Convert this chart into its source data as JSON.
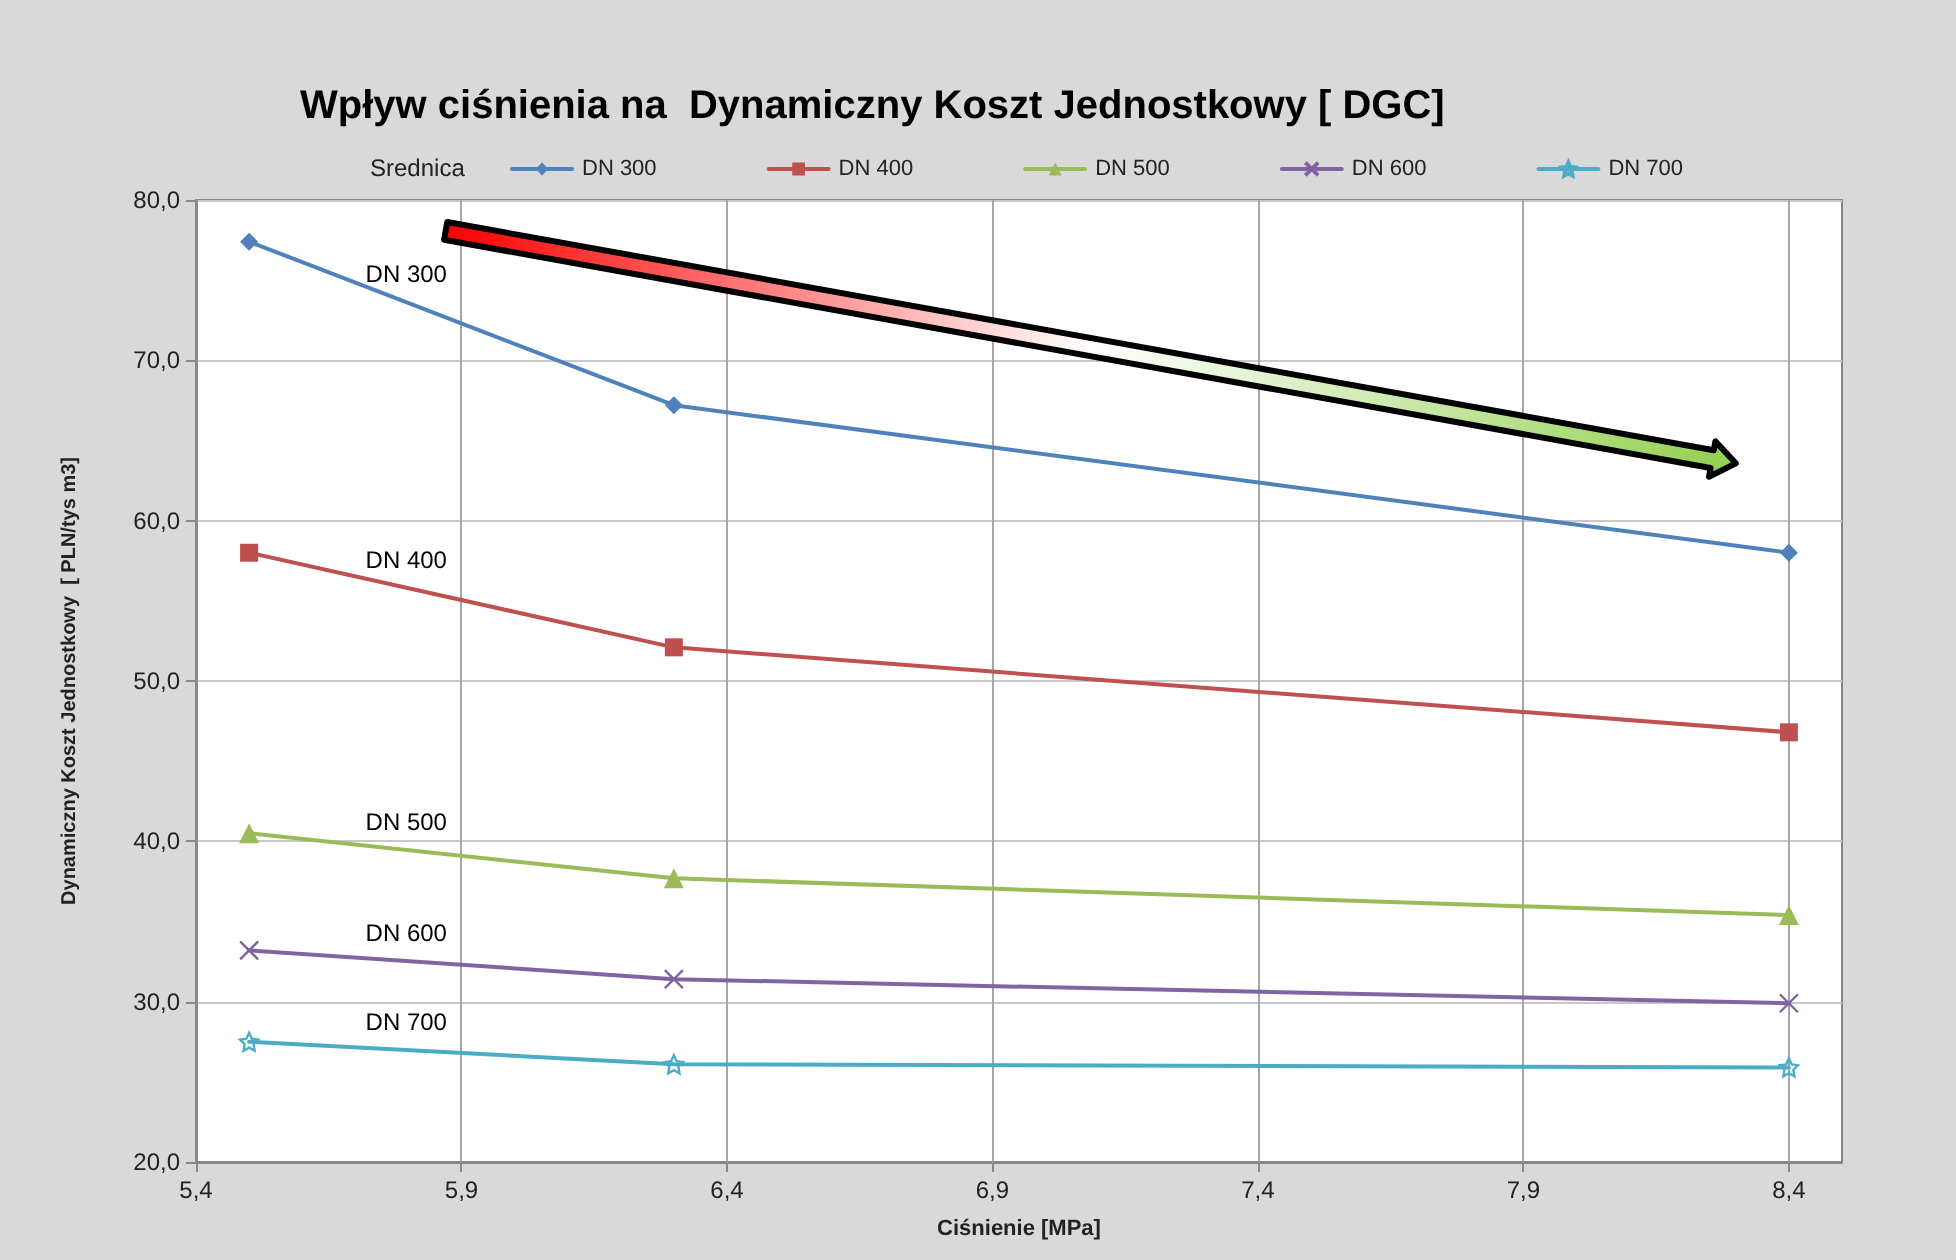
{
  "chart_data": {
    "type": "line",
    "title": "Wpływ ciśnienia na  Dynamiczny Koszt Jednostkowy [ DGC]",
    "xlabel": "Ciśnienie [MPa]",
    "ylabel": "Dynamiczny Koszt Jednostkowy  [ PLN/tys m3]",
    "legend_title": "Srednica",
    "legend": "top",
    "grid": true,
    "x": [
      5.5,
      6.3,
      8.4
    ],
    "xlim": [
      5.4,
      8.5
    ],
    "xticks": [
      {
        "value": 5.4,
        "label": "5,4"
      },
      {
        "value": 5.9,
        "label": "5,9"
      },
      {
        "value": 6.4,
        "label": "6,4"
      },
      {
        "value": 6.9,
        "label": "6,9"
      },
      {
        "value": 7.4,
        "label": "7,4"
      },
      {
        "value": 7.9,
        "label": "7,9"
      },
      {
        "value": 8.4,
        "label": "8,4"
      }
    ],
    "ylim": [
      20,
      80
    ],
    "yticks": [
      {
        "value": 20,
        "label": "20,0"
      },
      {
        "value": 30,
        "label": "30,0"
      },
      {
        "value": 40,
        "label": "40,0"
      },
      {
        "value": 50,
        "label": "50,0"
      },
      {
        "value": 60,
        "label": "60,0"
      },
      {
        "value": 70,
        "label": "70,0"
      },
      {
        "value": 80,
        "label": "80,0"
      }
    ],
    "series": [
      {
        "name": "DN 300",
        "color": "#4f81bd",
        "marker": "diamond",
        "values": [
          77.4,
          67.2,
          58.0
        ]
      },
      {
        "name": "DN 400",
        "color": "#c0504d",
        "marker": "square",
        "values": [
          58.0,
          52.1,
          46.8
        ]
      },
      {
        "name": "DN 500",
        "color": "#9bbb59",
        "marker": "triangle",
        "values": [
          40.5,
          37.7,
          35.4
        ]
      },
      {
        "name": "DN 600",
        "color": "#8064a2",
        "marker": "cross",
        "values": [
          33.2,
          31.4,
          29.9
        ]
      },
      {
        "name": "DN 700",
        "color": "#4bacc6",
        "marker": "star",
        "values": [
          27.5,
          26.1,
          25.9
        ]
      }
    ],
    "annotations": [
      "DN 300",
      "DN 400",
      "DN 500",
      "DN 600",
      "DN 700"
    ]
  }
}
